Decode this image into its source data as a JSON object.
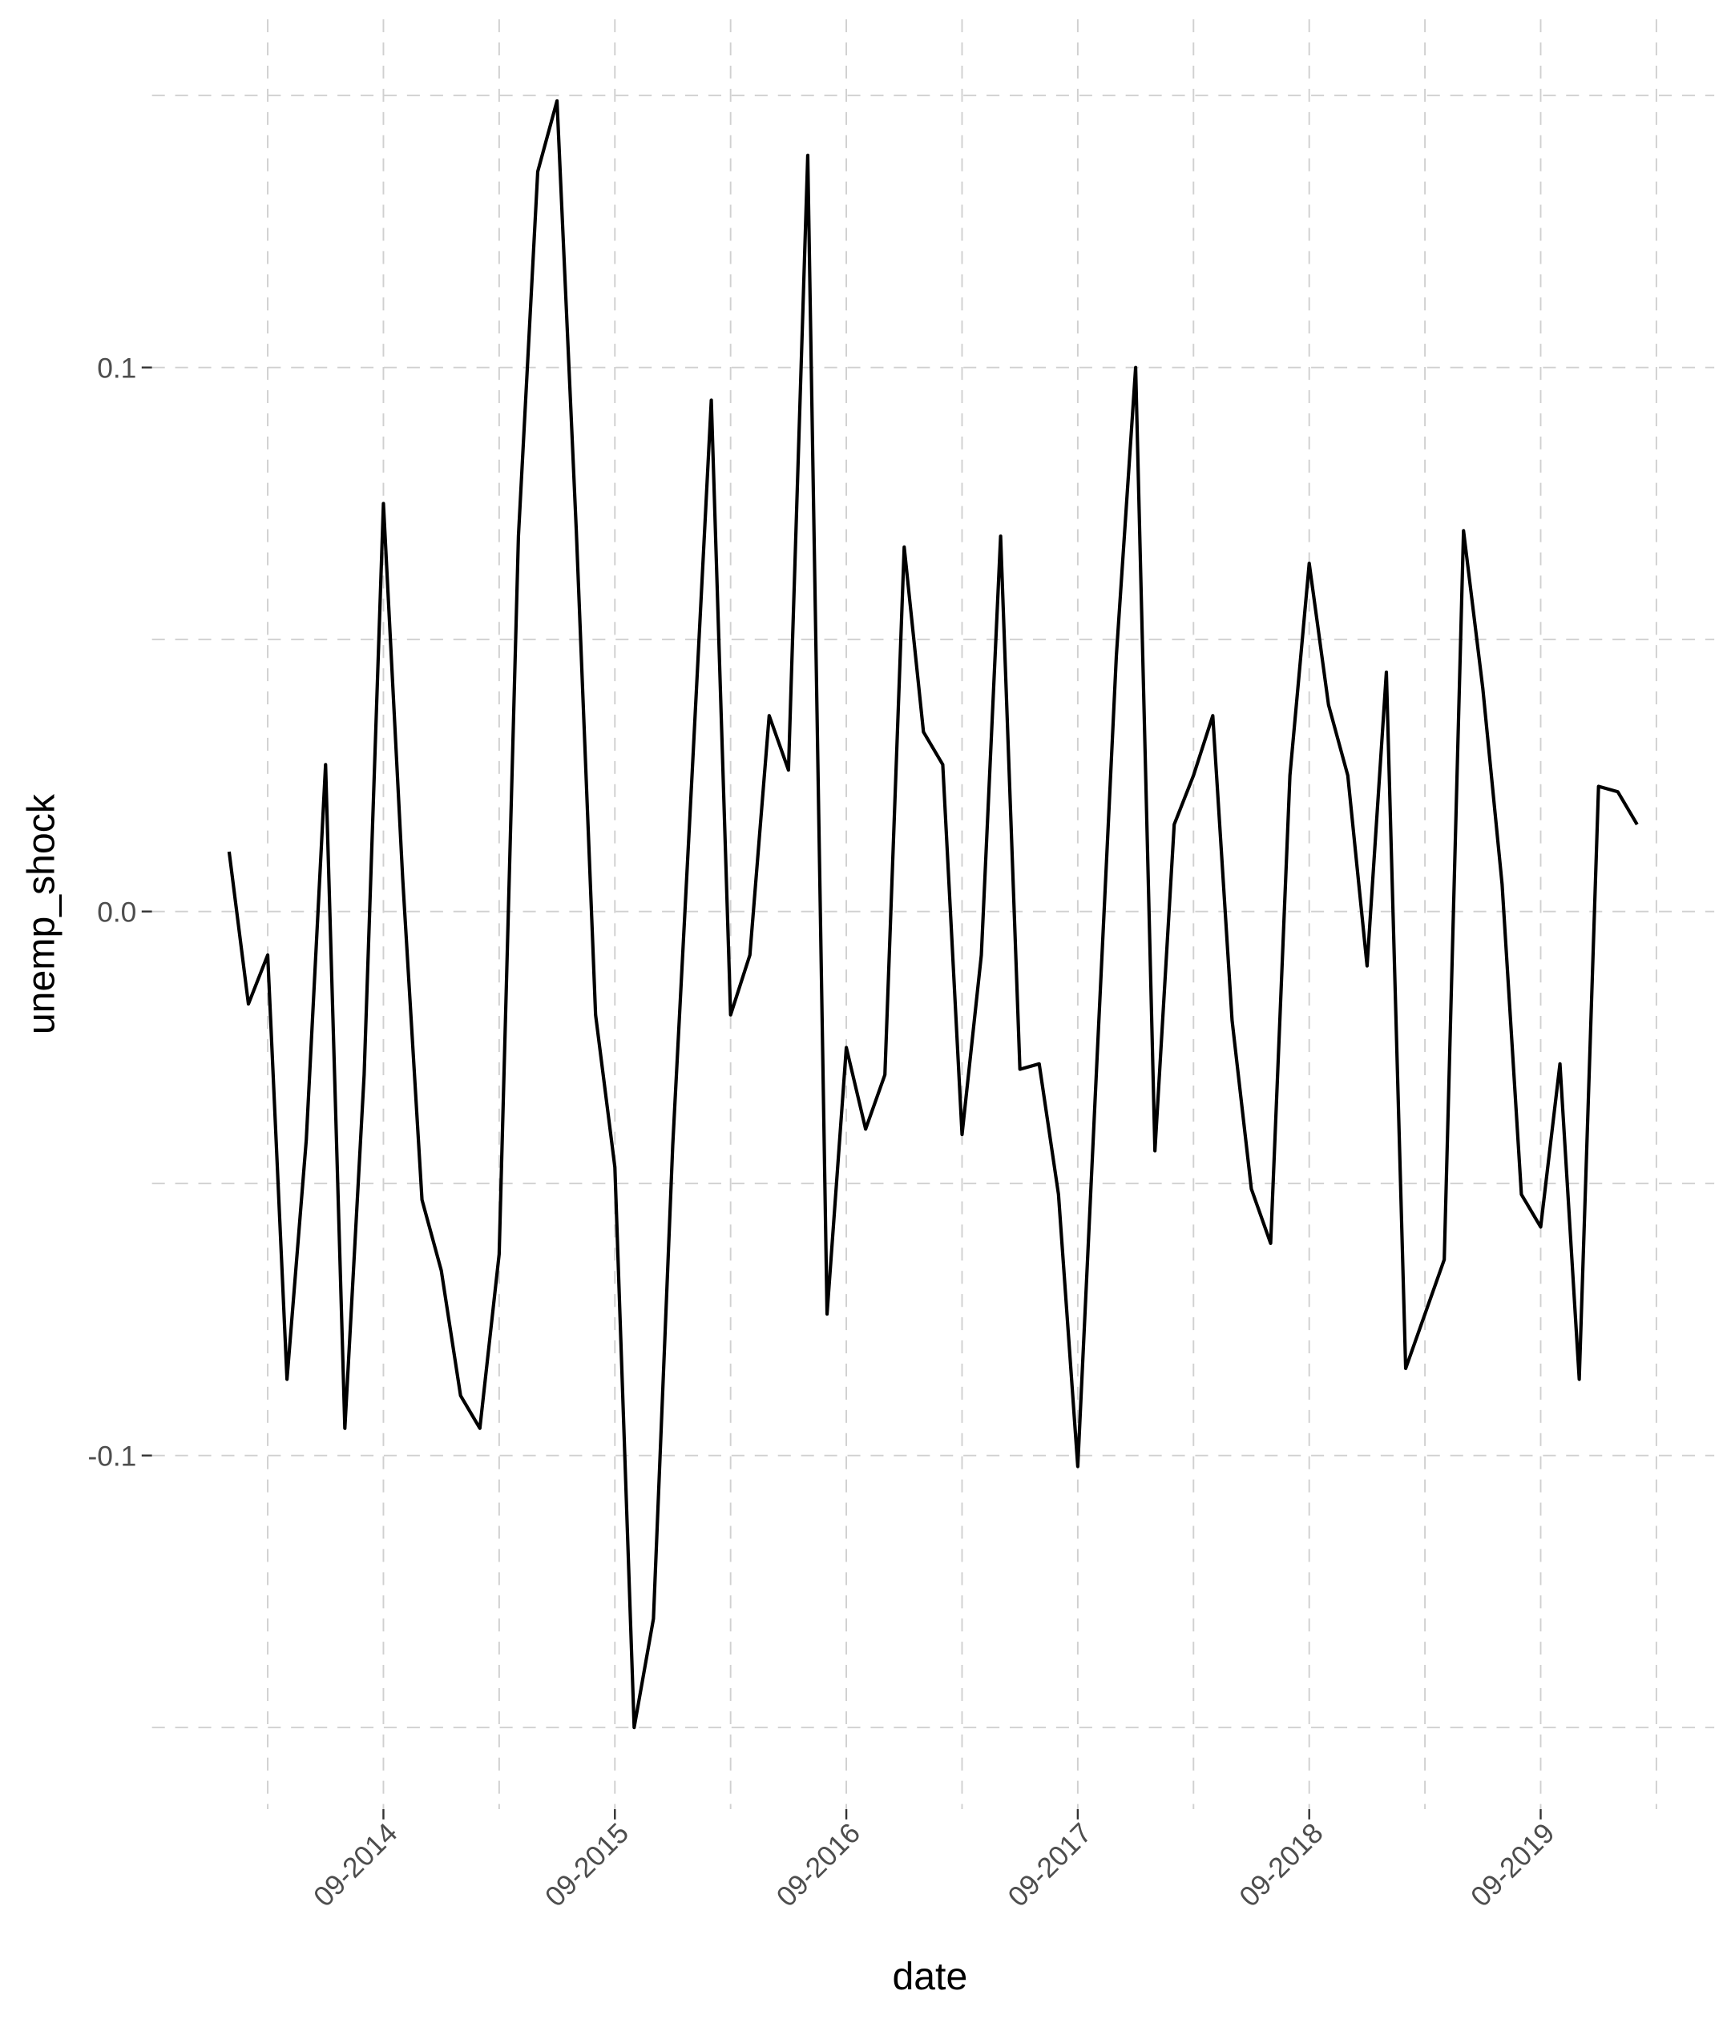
{
  "chart_data": {
    "type": "line",
    "x_label": "date",
    "y_label": "unemp_shock",
    "x": [
      "2014-01",
      "2014-02",
      "2014-03",
      "2014-04",
      "2014-05",
      "2014-06",
      "2014-07",
      "2014-08",
      "2014-09",
      "2014-10",
      "2014-11",
      "2014-12",
      "2015-01",
      "2015-02",
      "2015-03",
      "2015-04",
      "2015-05",
      "2015-06",
      "2015-07",
      "2015-08",
      "2015-09",
      "2015-10",
      "2015-11",
      "2015-12",
      "2016-01",
      "2016-02",
      "2016-03",
      "2016-04",
      "2016-05",
      "2016-06",
      "2016-07",
      "2016-08",
      "2016-09",
      "2016-10",
      "2016-11",
      "2016-12",
      "2017-01",
      "2017-02",
      "2017-03",
      "2017-04",
      "2017-05",
      "2017-06",
      "2017-07",
      "2017-08",
      "2017-09",
      "2017-10",
      "2017-11",
      "2017-12",
      "2018-01",
      "2018-02",
      "2018-03",
      "2018-04",
      "2018-05",
      "2018-06",
      "2018-07",
      "2018-08",
      "2018-09",
      "2018-10",
      "2018-11",
      "2018-12",
      "2019-01",
      "2019-02",
      "2019-03",
      "2019-04",
      "2019-05",
      "2019-06",
      "2019-07",
      "2019-08",
      "2019-09",
      "2019-10",
      "2019-11",
      "2019-12",
      "2020-01",
      "2020-02"
    ],
    "series": [
      {
        "name": "unemp_shock",
        "color": "#000000",
        "values": [
          0.011,
          -0.017,
          -0.008,
          -0.086,
          -0.042,
          0.027,
          -0.095,
          -0.03,
          0.075,
          0.006,
          -0.053,
          -0.066,
          -0.089,
          -0.095,
          -0.063,
          0.069,
          0.136,
          0.149,
          0.07,
          -0.019,
          -0.047,
          -0.15,
          -0.13,
          -0.043,
          0.025,
          0.094,
          -0.019,
          -0.008,
          0.036,
          0.026,
          0.139,
          -0.074,
          -0.025,
          -0.04,
          -0.03,
          0.067,
          0.033,
          0.027,
          -0.041,
          -0.008,
          0.069,
          -0.029,
          -0.028,
          -0.052,
          -0.102,
          -0.027,
          0.047,
          0.1,
          -0.044,
          0.016,
          0.025,
          0.036,
          -0.02,
          -0.051,
          -0.061,
          0.025,
          0.064,
          0.038,
          0.025,
          -0.01,
          0.044,
          -0.084,
          -0.074,
          -0.064,
          0.07,
          0.041,
          0.005,
          -0.052,
          -0.058,
          -0.028,
          -0.086,
          0.023,
          0.022,
          0.016
        ]
      }
    ],
    "xlim": [
      "2013-09",
      "2020-06"
    ],
    "xticks": [
      {
        "value": "2014-09",
        "label": "09-2014"
      },
      {
        "value": "2015-09",
        "label": "09-2015"
      },
      {
        "value": "2016-09",
        "label": "09-2016"
      },
      {
        "value": "2017-09",
        "label": "09-2017"
      },
      {
        "value": "2018-09",
        "label": "09-2018"
      },
      {
        "value": "2019-09",
        "label": "09-2019"
      }
    ],
    "x_minor_ticks": [
      "2014-03",
      "2015-03",
      "2016-03",
      "2017-03",
      "2018-03",
      "2019-03",
      "2020-03"
    ],
    "ylim": [
      -0.165,
      0.164
    ],
    "yticks": [
      -0.1,
      {
        "value": 0,
        "label": "0.0"
      },
      0.1
    ],
    "y_minor_ticks": [
      -0.15,
      -0.05,
      0.05,
      0.15
    ],
    "grid": true
  }
}
